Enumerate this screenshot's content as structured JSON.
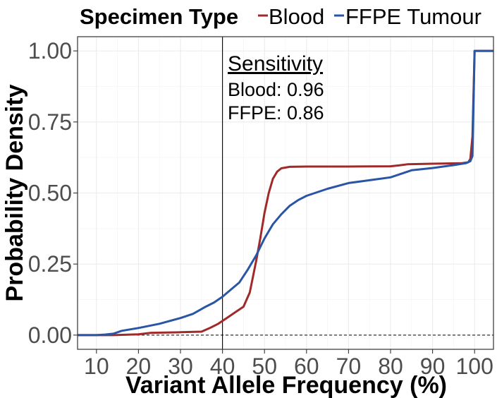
{
  "legend": {
    "title": "Specimen Type",
    "items": [
      {
        "label": "Blood",
        "color": "#a02a2a"
      },
      {
        "label": "FFPE Tumour",
        "color": "#2a55a5"
      }
    ]
  },
  "annotation": {
    "heading": "Sensitivity",
    "lines": [
      "Blood: 0.96",
      "FFPE: 0.86"
    ]
  },
  "chart_data": {
    "type": "line",
    "xlabel": "Variant Allele Frequency (%)",
    "ylabel": "Probability Density",
    "xlim": [
      5.5,
      104.5
    ],
    "ylim": [
      -0.05,
      1.05
    ],
    "xticks": [
      10,
      20,
      30,
      40,
      50,
      60,
      70,
      80,
      90,
      100
    ],
    "yticks": [
      0,
      0.25,
      0.5,
      0.75,
      1
    ],
    "ytick_labels": [
      "0.00",
      "0.25",
      "0.50",
      "0.75",
      "1.00"
    ],
    "vline_x": 40,
    "hline_y": 0,
    "grid": true,
    "legend_position": "top",
    "series": [
      {
        "name": "Blood",
        "color": "#a02a2a",
        "x": [
          5.5,
          14,
          20,
          23,
          30,
          35,
          37,
          39,
          41,
          43,
          45,
          46.5,
          48,
          49,
          50,
          51,
          52,
          53,
          54,
          56,
          60,
          70,
          80,
          82,
          84,
          90,
          97,
          98.5,
          99,
          99.5,
          100,
          104.5
        ],
        "y": [
          0,
          0,
          0.003,
          0.008,
          0.01,
          0.012,
          0.025,
          0.04,
          0.06,
          0.08,
          0.1,
          0.15,
          0.26,
          0.34,
          0.43,
          0.5,
          0.55,
          0.575,
          0.587,
          0.592,
          0.593,
          0.593,
          0.594,
          0.597,
          0.601,
          0.603,
          0.605,
          0.608,
          0.62,
          0.7,
          1.0,
          1.0
        ]
      },
      {
        "name": "FFPE Tumour",
        "color": "#2a55a5",
        "x": [
          5.5,
          10,
          12,
          14,
          16,
          20,
          25,
          30,
          33,
          36,
          38,
          40,
          42,
          44,
          46,
          48,
          50,
          52,
          54,
          56,
          58,
          60,
          65,
          70,
          75,
          80,
          83,
          85,
          90,
          95,
          98,
          99,
          99.5,
          100,
          104.5
        ],
        "y": [
          0,
          0,
          0.002,
          0.005,
          0.015,
          0.025,
          0.04,
          0.06,
          0.075,
          0.1,
          0.115,
          0.135,
          0.16,
          0.185,
          0.23,
          0.28,
          0.34,
          0.39,
          0.425,
          0.455,
          0.475,
          0.49,
          0.515,
          0.535,
          0.545,
          0.555,
          0.57,
          0.58,
          0.588,
          0.598,
          0.605,
          0.612,
          0.63,
          1.0,
          1.0
        ]
      }
    ]
  }
}
